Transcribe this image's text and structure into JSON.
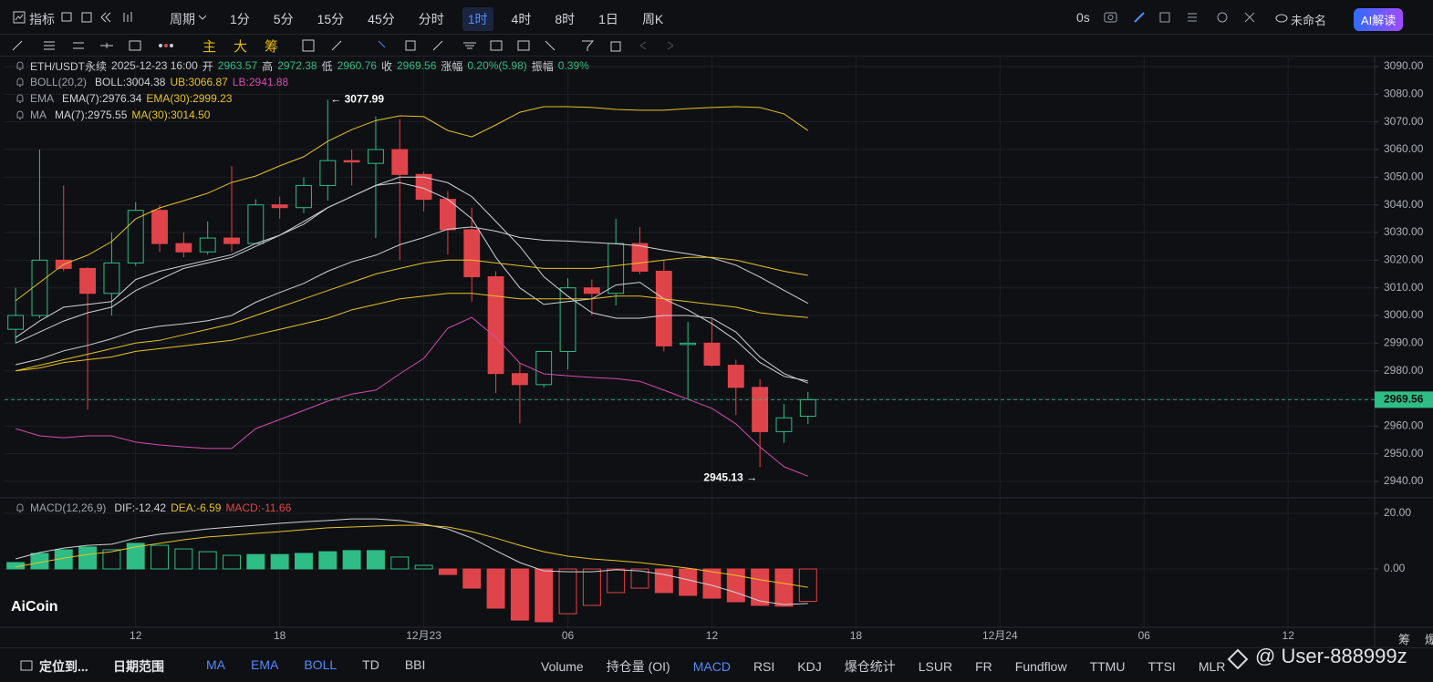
{
  "toolbar": {
    "indicator": "指标",
    "period": "周期",
    "intervals": [
      {
        "label": "1分",
        "active": false
      },
      {
        "label": "5分",
        "active": false
      },
      {
        "label": "15分",
        "active": false
      },
      {
        "label": "45分",
        "active": false
      },
      {
        "label": "分时",
        "active": false
      },
      {
        "label": "1时",
        "active": true
      },
      {
        "label": "4时",
        "active": false
      },
      {
        "label": "8时",
        "active": false
      },
      {
        "label": "1日",
        "active": false
      },
      {
        "label": "周K",
        "active": false
      }
    ],
    "timer": "0s",
    "layout_name": "未命名",
    "ai": "AI解读"
  },
  "drawing_toolbar": {
    "chips": [
      "主",
      "大",
      "筹"
    ]
  },
  "logo": "AiCoin",
  "chart_data": [
    {
      "type": "candlestick",
      "symbol": "ETH/USDT永续",
      "time": "2025-12-23 16:00",
      "ohlc_labels": [
        "开",
        "高",
        "低",
        "收"
      ],
      "change_label": "涨幅",
      "change": "0.20%(5.98)",
      "amplitude_label": "振幅",
      "amplitude": "0.39%",
      "up_color": "#2ebd85",
      "down_color": "#e0444b",
      "x": [
        0,
        1,
        2,
        3,
        4,
        5,
        6,
        7,
        8,
        9,
        10,
        11,
        12,
        13,
        14,
        15,
        16,
        17,
        18,
        19,
        20,
        21,
        22,
        23,
        24,
        25,
        26,
        27,
        28,
        29,
        30,
        31,
        32,
        33
      ],
      "open": [
        2995,
        3000,
        3020,
        3017,
        3008,
        3019,
        3038,
        3026,
        3023,
        3028,
        3026,
        3040,
        3039,
        3047,
        3056,
        3055,
        3060,
        3051,
        3042,
        3031,
        3014,
        2979,
        2975,
        2987,
        3010,
        3008,
        3026,
        3016,
        2989.5,
        2990,
        2982,
        2974,
        2958,
        2963.57
      ],
      "high": [
        3010,
        3060,
        3047,
        3017.5,
        3030,
        3041,
        3040,
        3030,
        3034,
        3054,
        3042,
        3043,
        3050,
        3077.99,
        3060,
        3072,
        3071,
        3052,
        3045,
        3039,
        3016,
        2983,
        2987,
        3013.5,
        3013,
        3035,
        3032,
        3020,
        2997.7,
        2998.7,
        2984,
        2977,
        2968,
        2972.38
      ],
      "low": [
        2990,
        2999,
        3016,
        2966,
        3000,
        3018,
        3023,
        3021,
        3022,
        3023,
        3026,
        3035,
        3037,
        3041.5,
        3047,
        3028,
        3020,
        3037.6,
        3022,
        3005,
        2972,
        2961,
        2974,
        2980.5,
        3000,
        3003.6,
        3015,
        2987,
        2970,
        2981.5,
        2964,
        2945.13,
        2954,
        2960.76
      ],
      "close": [
        3000,
        3020,
        3017,
        3008,
        3019,
        3038,
        3026,
        3023,
        3028,
        3026,
        3040,
        3039,
        3047,
        3056,
        3055.5,
        3060,
        3051,
        3042,
        3031,
        3014,
        2979,
        2975,
        2987,
        3010,
        3008,
        3026,
        3016,
        2989,
        2990,
        2982,
        2974,
        2958,
        2963,
        2969.56
      ],
      "indicators": [
        {
          "label": "BOLL(20,2)",
          "series": [
            {
              "name": "BOLL:3004.38",
              "color": "#cfd2d6",
              "values": [
                2982.2,
                2984.2,
                2987.2,
                2989.2,
                2991.6,
                2994.6,
                2996.1,
                2997.0,
                2998.1,
                3000.0,
                3004.8,
                3008.3,
                3011.6,
                3016.0,
                3019.4,
                3021.8,
                3025.6,
                3028.2,
                3031.2,
                3032.0,
                3030.5,
                3028.2,
                3027.2,
                3026.9,
                3026.4,
                3025.9,
                3025.2,
                3023.6,
                3022.3,
                3020.8,
                3018.2,
                3013.9,
                3009.1,
                3004.38
              ]
            },
            {
              "name": "UB:3066.87",
              "color": "#e6c229",
              "values": [
                3005.3,
                3011.9,
                3018.5,
                3021.8,
                3026.7,
                3034.9,
                3038.9,
                3041.5,
                3044.2,
                3048.1,
                3050.4,
                3054.1,
                3057.4,
                3063.0,
                3067.2,
                3070.5,
                3072.2,
                3071.9,
                3066.9,
                3064.6,
                3068.9,
                3073.5,
                3075.5,
                3075.5,
                3075.2,
                3074.5,
                3074.2,
                3074.2,
                3074.8,
                3075.2,
                3075.5,
                3075.2,
                3072.9,
                3066.87
              ]
            },
            {
              "name": "LB:2941.88",
              "color": "#d24cb1",
              "values": [
                2959.1,
                2956.5,
                2955.8,
                2956.5,
                2956.5,
                2954.2,
                2953.2,
                2952.5,
                2951.9,
                2951.9,
                2959.1,
                2962.4,
                2965.7,
                2969.0,
                2971.6,
                2973.0,
                2978.9,
                2984.5,
                2995.4,
                2999.3,
                2992.1,
                2982.8,
                2978.9,
                2978.2,
                2977.6,
                2977.2,
                2976.2,
                2973.0,
                2969.7,
                2966.4,
                2960.8,
                2952.5,
                2945.3,
                2941.88
              ]
            }
          ]
        },
        {
          "label": "EMA",
          "series": [
            {
              "name": "EMA(7):2976.34",
              "color": "#cfd2d6",
              "values": [
                2992,
                2998,
                3003,
                3004,
                3005,
                3013,
                3016,
                3018,
                3020,
                3022,
                3026,
                3029,
                3034,
                3039,
                3043,
                3047,
                3048,
                3046,
                3042,
                3035,
                3021,
                3010,
                3004,
                3005,
                3006,
                3011,
                3012,
                3006,
                3002,
                2997,
                2991,
                2983,
                2978,
                2976.34
              ]
            },
            {
              "name": "EMA(30):2999.23",
              "color": "#e6c229",
              "values": [
                2980,
                2981,
                2983,
                2984,
                2985,
                2987,
                2988,
                2989,
                2990,
                2991,
                2993,
                2995,
                2997,
                2999,
                3002,
                3004,
                3006,
                3007,
                3008,
                3008,
                3007,
                3006,
                3006,
                3006,
                3006,
                3007,
                3007,
                3006,
                3005,
                3004,
                3003,
                3001,
                3000,
                2999.23
              ]
            }
          ]
        },
        {
          "label": "MA",
          "series": [
            {
              "name": "MA(7):2975.55",
              "color": "#cfd2d6",
              "values": [
                2990,
                2994,
                2998,
                3001,
                3003,
                3009,
                3013,
                3017,
                3019,
                3021,
                3025,
                3029,
                3033,
                3039,
                3043,
                3047,
                3050,
                3050,
                3048,
                3043,
                3034,
                3025,
                3014,
                3007,
                3001,
                2999,
                2999,
                3000,
                3000,
                2999,
                2994,
                2985,
                2979,
                2975.55
              ]
            },
            {
              "name": "MA(30):3014.50",
              "color": "#e6c229",
              "values": [
                2980,
                2982,
                2984,
                2986,
                2988,
                2990,
                2991,
                2993,
                2995,
                2997,
                3000,
                3003,
                3006,
                3009,
                3012,
                3015,
                3017,
                3019,
                3020,
                3020,
                3019,
                3018,
                3017,
                3017,
                3017,
                3018,
                3019,
                3020,
                3021,
                3021,
                3020,
                3018,
                3016,
                3014.5
              ]
            }
          ]
        }
      ],
      "annotations": [
        "← 3077.99",
        "2945.13 →"
      ],
      "xlim": [
        -0.46,
        56.6
      ],
      "xticks": [
        {
          "value": 5,
          "label": "12"
        },
        {
          "value": 11,
          "label": "18"
        },
        {
          "value": 17,
          "label": "12月23"
        },
        {
          "value": 23,
          "label": "06"
        },
        {
          "value": 29,
          "label": "12"
        },
        {
          "value": 35,
          "label": "18"
        },
        {
          "value": 41,
          "label": "12月24"
        },
        {
          "value": 47,
          "label": "06"
        },
        {
          "value": 53,
          "label": "12"
        }
      ],
      "ylim": [
        2934.4,
        3093.3
      ],
      "yticks": [
        {
          "value": 2940,
          "label": "2940.00"
        },
        {
          "value": 2950,
          "label": "2950.00"
        },
        {
          "value": 2960,
          "label": "2960.00"
        },
        {
          "value": 2970,
          "label": "2970.00"
        },
        {
          "value": 2980,
          "label": "2980.00"
        },
        {
          "value": 2990,
          "label": "2990.00"
        },
        {
          "value": 3000,
          "label": "3000.00"
        },
        {
          "value": 3010,
          "label": "3010.00"
        },
        {
          "value": 3020,
          "label": "3020.00"
        },
        {
          "value": 3030,
          "label": "3030.00"
        },
        {
          "value": 3040,
          "label": "3040.00"
        },
        {
          "value": 3050,
          "label": "3050.00"
        },
        {
          "value": 3060,
          "label": "3060.00"
        },
        {
          "value": 3070,
          "label": "3070.00"
        },
        {
          "value": 3080,
          "label": "3080.00"
        },
        {
          "value": 3090,
          "label": "3090.00"
        }
      ],
      "grid": true,
      "last_price_line": true
    },
    {
      "type": "macd",
      "label": "MACD(12,26,9)",
      "x": [
        0,
        1,
        2,
        3,
        4,
        5,
        6,
        7,
        8,
        9,
        10,
        11,
        12,
        13,
        14,
        15,
        16,
        17,
        18,
        19,
        20,
        21,
        22,
        23,
        24,
        25,
        26,
        27,
        28,
        29,
        30,
        31,
        32,
        33
      ],
      "series": [
        {
          "name": "DIF:-12.42",
          "color": "#cfd2d6",
          "values": [
            3.6,
            5.9,
            7.5,
            8.5,
            8.9,
            11.1,
            12.5,
            13.4,
            14.4,
            15.1,
            15.7,
            16.4,
            17.0,
            17.4,
            18.0,
            18.0,
            17.4,
            16.1,
            14.4,
            11.1,
            6.6,
            2.3,
            -0.7,
            -1.0,
            -1.0,
            -0.3,
            -0.7,
            -2.0,
            -3.9,
            -5.9,
            -8.5,
            -11.5,
            -12.8,
            -12.42
          ]
        },
        {
          "name": "DEA:-6.59",
          "color": "#e6c229",
          "values": [
            0.7,
            2.3,
            3.9,
            5.2,
            6.2,
            7.9,
            9.2,
            10.5,
            11.5,
            12.1,
            12.8,
            13.4,
            14.1,
            14.8,
            15.1,
            15.4,
            15.7,
            15.7,
            15.1,
            13.4,
            11.1,
            8.5,
            6.2,
            4.6,
            3.6,
            3.0,
            2.3,
            1.3,
            0.3,
            -1.0,
            -2.3,
            -3.9,
            -5.2,
            -6.59
          ]
        }
      ],
      "histogram": {
        "name": "MACD:-11.66",
        "up_color": "#2ebd85",
        "down_color": "#e0444b",
        "values": [
          2.3,
          5.6,
          6.9,
          7.9,
          6.9,
          9.2,
          8.5,
          7.2,
          6.2,
          4.9,
          5.2,
          5.2,
          5.6,
          6.2,
          6.6,
          6.6,
          4.3,
          1.3,
          -2.0,
          -6.9,
          -14.1,
          -18.4,
          -19.0,
          -16.1,
          -13.1,
          -8.5,
          -6.9,
          -8.5,
          -9.5,
          -10.5,
          -11.8,
          -13.1,
          -13.4,
          -11.66
        ]
      },
      "xlim": [
        -0.46,
        56.6
      ],
      "ylim": [
        -20.98,
        24.92
      ],
      "yticks": [
        {
          "value": 0,
          "label": "0.00"
        },
        {
          "value": 20,
          "label": "20.00"
        }
      ],
      "grid": true
    }
  ],
  "bottom_bar": {
    "locate": "定位到...",
    "date_range": "日期范围",
    "main_indicators": [
      {
        "label": "MA",
        "active": true
      },
      {
        "label": "EMA",
        "active": true
      },
      {
        "label": "BOLL",
        "active": true
      },
      {
        "label": "TD",
        "active": false
      },
      {
        "label": "BBI",
        "active": false
      }
    ],
    "sub_indicators": [
      {
        "label": "Volume",
        "active": false
      },
      {
        "label": "持仓量 (OI)",
        "active": false
      },
      {
        "label": "MACD",
        "active": true
      },
      {
        "label": "RSI",
        "active": false
      },
      {
        "label": "KDJ",
        "active": false
      },
      {
        "label": "爆仓统计",
        "active": false
      },
      {
        "label": "LSUR",
        "active": false
      },
      {
        "label": "FR",
        "active": false
      },
      {
        "label": "Fundflow",
        "active": false
      },
      {
        "label": "TTMU",
        "active": false
      },
      {
        "label": "TTSI",
        "active": false
      },
      {
        "label": "MLR",
        "active": false
      }
    ],
    "watermark": "@ User-888999z",
    "right": [
      "筹",
      "爆"
    ]
  }
}
